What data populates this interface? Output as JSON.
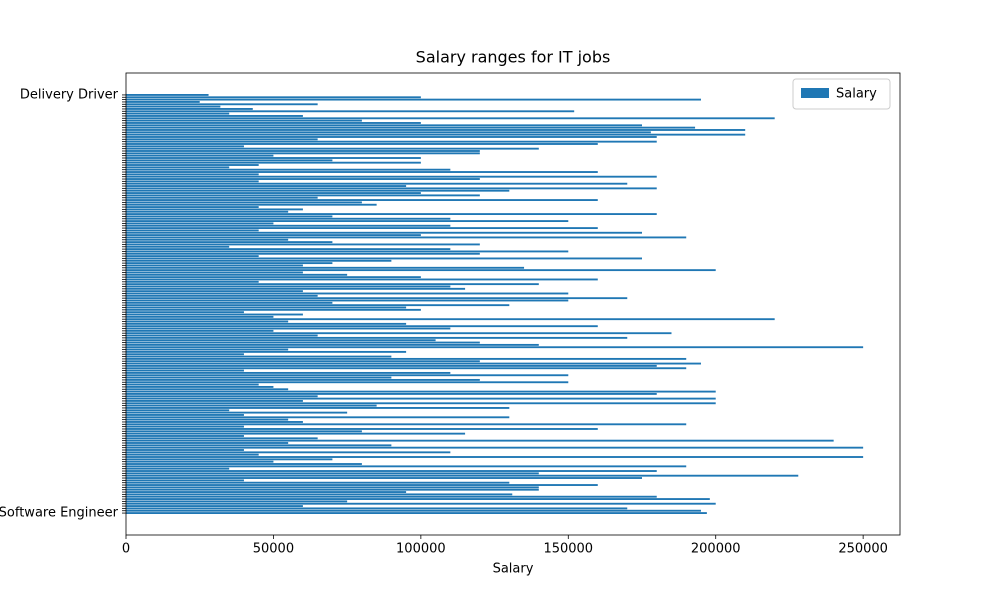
{
  "chart_data": {
    "type": "barh",
    "title": "Salary ranges for IT jobs",
    "xlabel": "Salary",
    "categories": [
      "Software Engineer",
      null,
      null,
      null,
      null,
      null,
      null,
      null,
      null,
      null,
      null,
      null,
      null,
      null,
      null,
      null,
      null,
      null,
      null,
      null,
      null,
      null,
      null,
      null,
      null,
      null,
      null,
      null,
      null,
      null,
      null,
      null,
      null,
      null,
      null,
      null,
      null,
      null,
      null,
      null,
      null,
      null,
      null,
      null,
      null,
      null,
      null,
      null,
      null,
      null,
      null,
      null,
      null,
      null,
      null,
      null,
      null,
      null,
      null,
      null,
      null,
      null,
      null,
      null,
      null,
      null,
      null,
      null,
      null,
      null,
      null,
      null,
      null,
      null,
      null,
      null,
      null,
      null,
      null,
      null,
      null,
      null,
      null,
      null,
      null,
      null,
      null,
      null,
      null,
      null,
      null,
      null,
      null,
      null,
      null,
      null,
      null,
      null,
      null,
      null,
      null,
      null,
      null,
      null,
      null,
      null,
      null,
      null,
      null,
      null,
      null,
      null,
      null,
      null,
      null,
      null,
      null,
      null,
      null,
      null,
      null,
      null,
      null,
      null,
      null,
      null,
      null,
      null,
      null,
      null,
      null,
      null,
      null,
      null,
      null,
      null,
      null,
      null,
      null,
      null,
      null,
      null,
      null,
      null,
      null,
      null,
      null,
      null,
      null,
      null,
      null,
      null,
      null,
      null,
      null,
      null,
      null,
      null,
      null,
      null,
      null,
      null,
      null,
      null,
      null,
      null,
      null,
      null,
      null,
      null,
      null,
      null,
      null,
      null,
      null,
      null,
      null,
      null,
      null,
      "Delivery Driver"
    ],
    "series": [
      {
        "name": "Salary",
        "color": "#1f77b4",
        "values": [
          197000,
          195000,
          170000,
          60000,
          200000,
          75000,
          198000,
          180000,
          131000,
          95000,
          140000,
          140000,
          160000,
          130000,
          40000,
          175000,
          228000,
          140000,
          180000,
          35000,
          190000,
          80000,
          50000,
          70000,
          250000,
          45000,
          110000,
          40000,
          250000,
          90000,
          55000,
          240000,
          65000,
          40000,
          115000,
          80000,
          160000,
          40000,
          190000,
          60000,
          55000,
          130000,
          40000,
          75000,
          35000,
          130000,
          85000,
          200000,
          60000,
          200000,
          65000,
          180000,
          200000,
          55000,
          50000,
          45000,
          150000,
          120000,
          90000,
          150000,
          110000,
          40000,
          190000,
          180000,
          195000,
          120000,
          190000,
          90000,
          40000,
          95000,
          55000,
          250000,
          140000,
          120000,
          105000,
          170000,
          65000,
          185000,
          50000,
          110000,
          160000,
          95000,
          55000,
          220000,
          50000,
          60000,
          40000,
          100000,
          95000,
          130000,
          70000,
          150000,
          170000,
          65000,
          150000,
          60000,
          115000,
          110000,
          140000,
          45000,
          160000,
          100000,
          75000,
          60000,
          200000,
          135000,
          60000,
          70000,
          90000,
          175000,
          45000,
          120000,
          150000,
          110000,
          35000,
          120000,
          70000,
          55000,
          190000,
          100000,
          175000,
          45000,
          160000,
          110000,
          50000,
          150000,
          110000,
          70000,
          180000,
          55000,
          60000,
          45000,
          85000,
          80000,
          160000,
          65000,
          120000,
          100000,
          130000,
          180000,
          95000,
          170000,
          45000,
          120000,
          180000,
          45000,
          160000,
          110000,
          35000,
          45000,
          100000,
          70000,
          100000,
          50000,
          120000,
          120000,
          140000,
          40000,
          160000,
          180000,
          65000,
          180000,
          210000,
          178000,
          210000,
          193000,
          175000,
          100000,
          80000,
          220000,
          60000,
          35000,
          152000,
          43000,
          32000,
          65000,
          25000,
          195000,
          100000,
          28000
        ]
      }
    ],
    "xlim": [
      0,
      262500
    ],
    "xticks": [
      0,
      50000,
      100000,
      150000,
      200000,
      250000
    ],
    "legend": "upper right"
  }
}
